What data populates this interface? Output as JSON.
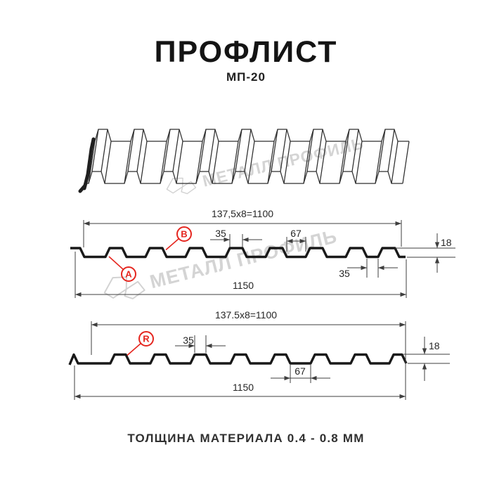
{
  "header": {
    "title": "ПРОФЛИСТ",
    "subtitle": "МП-20"
  },
  "watermark": {
    "text": "МЕТАЛЛ ПРОФИЛЬ",
    "color": "#d4d4d4"
  },
  "colors": {
    "accent_red": "#e5261f",
    "drawing_line": "#191919",
    "dimension_line": "#3f3f3f"
  },
  "profile_top": {
    "width_formula": "137,5x8=1100",
    "crest_top_width": "35",
    "crest_base_width": "67",
    "height": "18",
    "overlap_gap": "35",
    "total_width": "1150",
    "labels": {
      "a": "A",
      "b": "B"
    }
  },
  "profile_bottom": {
    "width_formula": "137.5x8=1100",
    "crest_top_width": "35",
    "valley_width": "67",
    "height": "18",
    "total_width": "1150",
    "labels": {
      "r": "R"
    }
  },
  "footer": {
    "note": "ТОЛЩИНА МАТЕРИАЛА 0.4 - 0.8 ММ"
  }
}
